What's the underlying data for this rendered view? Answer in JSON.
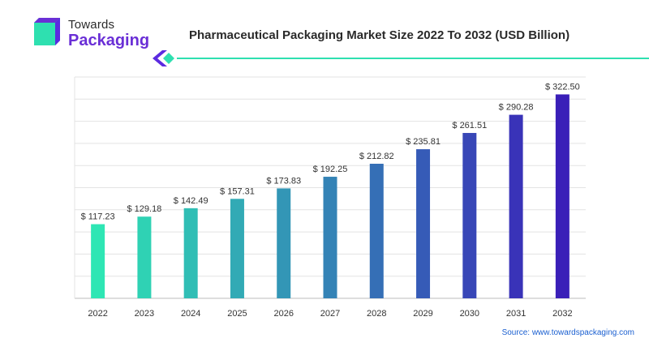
{
  "brand": {
    "name_top": "Towards",
    "name_bottom": "Packaging"
  },
  "colors": {
    "accent_green": "#2ee0b0",
    "accent_purple": "#5b2be0",
    "bar_start": "#2ee6b4",
    "bar_end": "#3a1fb8"
  },
  "source_text": "Source: www.towardspackaging.com",
  "chart_data": {
    "type": "bar",
    "title": "Pharmaceutical Packaging Market Size 2022 To 2032 (USD Billion)",
    "xlabel": "",
    "ylabel": "",
    "categories": [
      "2022",
      "2023",
      "2024",
      "2025",
      "2026",
      "2027",
      "2028",
      "2029",
      "2030",
      "2031",
      "2032"
    ],
    "values": [
      117.23,
      129.18,
      142.49,
      157.31,
      173.83,
      192.25,
      212.82,
      235.81,
      261.51,
      290.28,
      322.5
    ],
    "value_labels": [
      "$ 117.23",
      "$ 129.18",
      "$ 142.49",
      "$ 157.31",
      "$ 173.83",
      "$ 192.25",
      "$ 212.82",
      "$ 235.81",
      "$ 261.51",
      "$ 290.28",
      "$ 322.50"
    ],
    "ylim": [
      0,
      350
    ],
    "grid": true,
    "legend": "none"
  }
}
